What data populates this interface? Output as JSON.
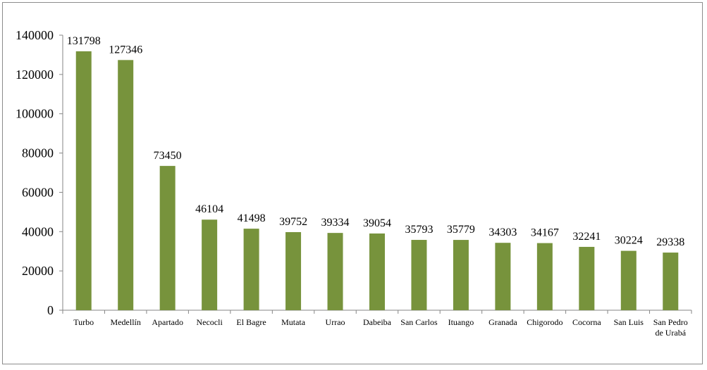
{
  "chart_data": {
    "type": "bar",
    "title": "",
    "xlabel": "",
    "ylabel": "",
    "ylim": [
      0,
      140000
    ],
    "yticks": [
      0,
      20000,
      40000,
      60000,
      80000,
      100000,
      120000,
      140000
    ],
    "grid": false,
    "legend": null,
    "bar_color": "#77933c",
    "categories": [
      "Turbo",
      "Medellín",
      "Apartado",
      "Necocli",
      "El Bagre",
      "Mutata",
      "Urrao",
      "Dabeiba",
      "San Carlos",
      "Ituango",
      "Granada",
      "Chigorodo",
      "Cocorna",
      "San Luis",
      "San Pedro de Urabá"
    ],
    "category_lines": [
      [
        "Turbo"
      ],
      [
        "Medellín"
      ],
      [
        "Apartado"
      ],
      [
        "Necocli"
      ],
      [
        "El Bagre"
      ],
      [
        "Mutata"
      ],
      [
        "Urrao"
      ],
      [
        "Dabeiba"
      ],
      [
        "San Carlos"
      ],
      [
        "Ituango"
      ],
      [
        "Granada"
      ],
      [
        "Chigorodo"
      ],
      [
        "Cocorna"
      ],
      [
        "San Luis"
      ],
      [
        "San Pedro",
        "de Urabá"
      ]
    ],
    "values": [
      131798,
      127346,
      73450,
      46104,
      41498,
      39752,
      39334,
      39054,
      35793,
      35779,
      34303,
      34167,
      32241,
      30224,
      29338
    ],
    "data_labels": [
      "131798",
      "127346",
      "73450",
      "46104",
      "41498",
      "39752",
      "39334",
      "39054",
      "35793",
      "35779",
      "34303",
      "34167",
      "32241",
      "30224",
      "29338"
    ]
  }
}
